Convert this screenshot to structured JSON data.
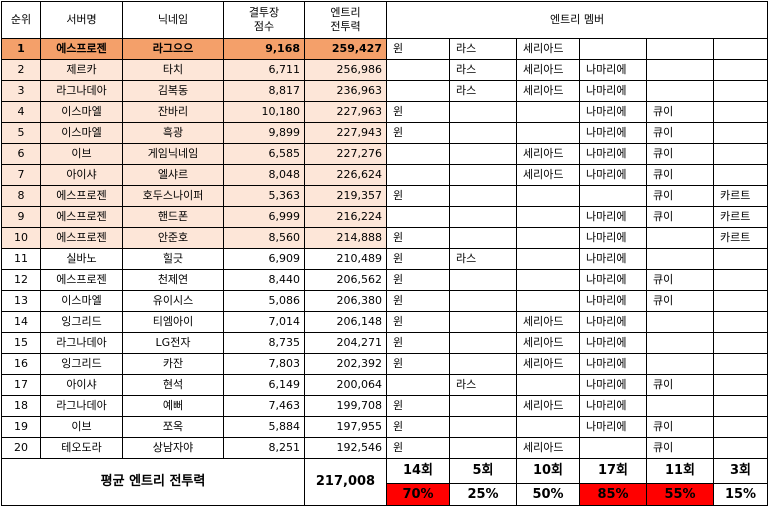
{
  "headers": {
    "rank": "순위",
    "server": "서버명",
    "nick": "닉네임",
    "score": "결투장\n점수",
    "power": "엔트리\n전투력",
    "members": "엔트리 멤버"
  },
  "rows": [
    {
      "rank": "1",
      "server": "에스프로젠",
      "nick": "라그으으",
      "score": "9,168",
      "power": "259,427",
      "m": [
        "윈",
        "라스",
        "세리아드",
        "",
        "",
        ""
      ]
    },
    {
      "rank": "2",
      "server": "제르카",
      "nick": "타치",
      "score": "6,711",
      "power": "256,986",
      "m": [
        "",
        "라스",
        "세리아드",
        "나마리에",
        "",
        ""
      ]
    },
    {
      "rank": "3",
      "server": "라그나데아",
      "nick": "김복동",
      "score": "8,817",
      "power": "236,963",
      "m": [
        "",
        "라스",
        "세리아드",
        "나마리에",
        "",
        ""
      ]
    },
    {
      "rank": "4",
      "server": "이스마엘",
      "nick": "잔바리",
      "score": "10,180",
      "power": "227,963",
      "m": [
        "윈",
        "",
        "",
        "나마리에",
        "큐이",
        ""
      ]
    },
    {
      "rank": "5",
      "server": "이스마엘",
      "nick": "흑광",
      "score": "9,899",
      "power": "227,943",
      "m": [
        "윈",
        "",
        "",
        "나마리에",
        "큐이",
        ""
      ]
    },
    {
      "rank": "6",
      "server": "이브",
      "nick": "게임닉네임",
      "score": "6,585",
      "power": "227,276",
      "m": [
        "",
        "",
        "세리아드",
        "나마리에",
        "큐이",
        ""
      ]
    },
    {
      "rank": "7",
      "server": "아이샤",
      "nick": "엘샤르",
      "score": "8,048",
      "power": "226,624",
      "m": [
        "",
        "",
        "세리아드",
        "나마리에",
        "큐이",
        ""
      ]
    },
    {
      "rank": "8",
      "server": "에스프로젠",
      "nick": "호두스나이퍼",
      "score": "5,363",
      "power": "219,357",
      "m": [
        "윈",
        "",
        "",
        "",
        "큐이",
        "카르트"
      ]
    },
    {
      "rank": "9",
      "server": "에스프로젠",
      "nick": "핸드폰",
      "score": "6,999",
      "power": "216,224",
      "m": [
        "",
        "",
        "",
        "나마리에",
        "큐이",
        "카르트"
      ]
    },
    {
      "rank": "10",
      "server": "에스프로젠",
      "nick": "안준호",
      "score": "8,560",
      "power": "214,888",
      "m": [
        "윈",
        "",
        "",
        "나마리에",
        "",
        "카르트"
      ]
    },
    {
      "rank": "11",
      "server": "실바노",
      "nick": "힐긋",
      "score": "6,909",
      "power": "210,489",
      "m": [
        "윈",
        "라스",
        "",
        "나마리에",
        "",
        ""
      ]
    },
    {
      "rank": "12",
      "server": "에스프로젠",
      "nick": "천제연",
      "score": "8,440",
      "power": "206,562",
      "m": [
        "윈",
        "",
        "",
        "나마리에",
        "큐이",
        ""
      ]
    },
    {
      "rank": "13",
      "server": "이스마엘",
      "nick": "유이시스",
      "score": "5,086",
      "power": "206,380",
      "m": [
        "윈",
        "",
        "",
        "나마리에",
        "큐이",
        ""
      ]
    },
    {
      "rank": "14",
      "server": "잉그리드",
      "nick": "티엠아이",
      "score": "7,014",
      "power": "206,148",
      "m": [
        "윈",
        "",
        "세리아드",
        "나마리에",
        "",
        ""
      ]
    },
    {
      "rank": "15",
      "server": "라그나데아",
      "nick": "LG전자",
      "score": "8,735",
      "power": "204,271",
      "m": [
        "윈",
        "",
        "세리아드",
        "나마리에",
        "",
        ""
      ]
    },
    {
      "rank": "16",
      "server": "잉그리드",
      "nick": "카잔",
      "score": "7,803",
      "power": "202,392",
      "m": [
        "윈",
        "",
        "세리아드",
        "나마리에",
        "",
        ""
      ]
    },
    {
      "rank": "17",
      "server": "아이샤",
      "nick": "현석",
      "score": "6,149",
      "power": "200,064",
      "m": [
        "",
        "라스",
        "",
        "나마리에",
        "큐이",
        ""
      ]
    },
    {
      "rank": "18",
      "server": "라그나데아",
      "nick": "예뻐",
      "score": "7,463",
      "power": "199,708",
      "m": [
        "윈",
        "",
        "세리아드",
        "나마리에",
        "",
        ""
      ]
    },
    {
      "rank": "19",
      "server": "이브",
      "nick": "쪼옥",
      "score": "5,884",
      "power": "197,955",
      "m": [
        "윈",
        "",
        "",
        "나마리에",
        "큐이",
        ""
      ]
    },
    {
      "rank": "20",
      "server": "테오도라",
      "nick": "상남자야",
      "score": "8,251",
      "power": "192,546",
      "m": [
        "윈",
        "",
        "세리아드",
        "",
        "큐이",
        ""
      ]
    }
  ],
  "footer": {
    "label": "평균 엔트리 전투력",
    "avg": "217,008",
    "counts": [
      "14회",
      "5회",
      "10회",
      "17회",
      "11회",
      "3회"
    ],
    "percents": [
      "70%",
      "25%",
      "50%",
      "85%",
      "55%",
      "15%"
    ],
    "highlight_color": "#ff0000",
    "highlighted": [
      true,
      false,
      false,
      true,
      true,
      false
    ]
  },
  "colors": {
    "top1": "#f4a06a",
    "pale": "#fde6d8"
  }
}
